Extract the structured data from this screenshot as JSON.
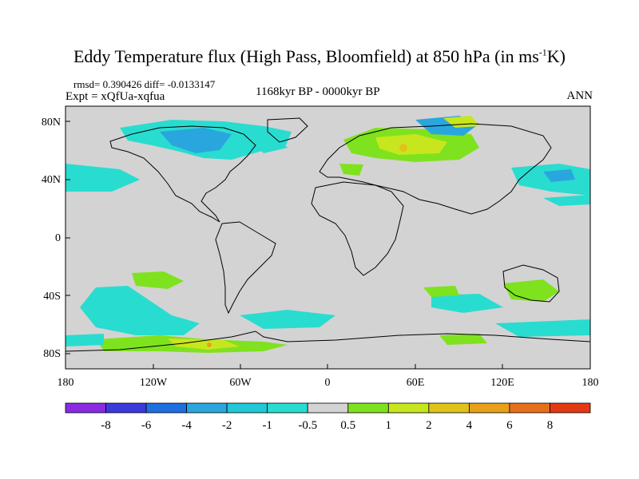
{
  "map": {
    "title_main": "Eddy Temperature flux (High Pass, Bloomfield) at 850 hPa (in ms",
    "title_sup": "-1",
    "title_end": "K)",
    "stats": "rmsd= 0.390426 diff= -0.0133147",
    "experiment": "Expt = xQfUa-xqfua",
    "period": "1168kyr BP - 0000kyr BP",
    "season": "ANN",
    "lat_labels": [
      "80N",
      "40N",
      "0",
      "40S",
      "80S"
    ],
    "lon_labels": [
      "180",
      "120W",
      "60W",
      "0",
      "60E",
      "120E",
      "180"
    ],
    "background_color": "#d3d3d3",
    "coastline_color": "#000000"
  },
  "colorbar": {
    "labels": [
      "-8",
      "-6",
      "-4",
      "-2",
      "-1",
      "-0.5",
      "0.5",
      "1",
      "2",
      "4",
      "6",
      "8"
    ],
    "colors": [
      "#8a2be2",
      "#3b3bdc",
      "#1e6fe0",
      "#2aa6de",
      "#20c8d8",
      "#29dcd0",
      "#d3d3d3",
      "#7fe21e",
      "#c8e61e",
      "#e0c21a",
      "#e8a01a",
      "#e8701a",
      "#e33a14"
    ]
  }
}
